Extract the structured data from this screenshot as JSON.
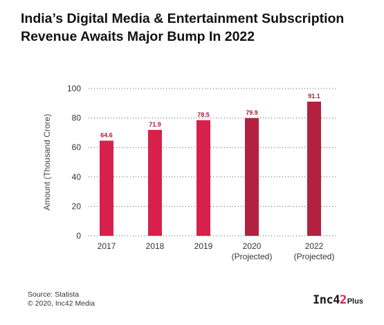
{
  "title": {
    "line1": "India’s Digital Media & Entertainment Subscription",
    "line2": "Revenue Awaits Major Bump In 2022"
  },
  "footer": {
    "source": "Source: Statista",
    "copyright": "© 2020, Inc42 Media"
  },
  "logo": {
    "main": "Inc4",
    "accent": "2",
    "plus": "Plus"
  },
  "colors": {
    "bar_primary": "#d8214a",
    "bar_shade": "#b2213f",
    "label": "#a81d38",
    "grid": "#555555",
    "axis_text": "#333333"
  },
  "chart_data": {
    "type": "bar",
    "categories": [
      "2017",
      "2018",
      "2019",
      "2020\n(Projected)",
      "2022\n(Projected)"
    ],
    "values": [
      64.6,
      71.9,
      78.5,
      79.9,
      91.1
    ],
    "value_labels": [
      "64.6",
      "71.9",
      "78.5",
      "79.9",
      "91.1"
    ],
    "title": "India’s Digital Media & Entertainment Subscription Revenue Awaits Major Bump In 2022",
    "xlabel": "",
    "ylabel": "Amount (Thousand Crore)",
    "ylim": [
      0,
      100
    ],
    "yticks": [
      0,
      20,
      40,
      60,
      80,
      100
    ],
    "grid": true,
    "grid_style": "dotted"
  }
}
